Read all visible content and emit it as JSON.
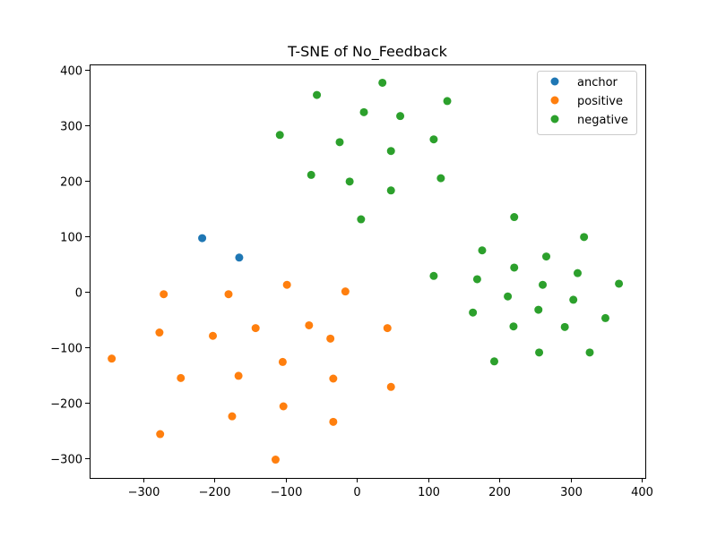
{
  "chart_data": {
    "type": "scatter",
    "title": "T-SNE of No_Feedback",
    "xlabel": "",
    "ylabel": "",
    "xlim": [
      -375,
      405
    ],
    "ylim": [
      -335,
      410
    ],
    "xticks": [
      -300,
      -200,
      -100,
      0,
      100,
      200,
      300,
      400
    ],
    "yticks": [
      -300,
      -200,
      -100,
      0,
      100,
      200,
      300,
      400
    ],
    "xtick_labels": [
      "−300",
      "−200",
      "−100",
      "0",
      "100",
      "200",
      "300",
      "400"
    ],
    "ytick_labels": [
      "−300",
      "−200",
      "−100",
      "0",
      "100",
      "200",
      "300",
      "400"
    ],
    "grid": false,
    "legend_position": "top-right",
    "series": [
      {
        "name": "anchor",
        "color": "#1f77b4",
        "points": [
          [
            -217,
            97
          ],
          [
            -165,
            62
          ]
        ]
      },
      {
        "name": "positive",
        "color": "#ff7f0e",
        "points": [
          [
            -271,
            -4
          ],
          [
            -180,
            -4
          ],
          [
            -98,
            13
          ],
          [
            -16,
            1
          ],
          [
            -277,
            -73
          ],
          [
            -202,
            -79
          ],
          [
            -142,
            -65
          ],
          [
            -67,
            -60
          ],
          [
            -37,
            -84
          ],
          [
            43,
            -65
          ],
          [
            -344,
            -120
          ],
          [
            -247,
            -155
          ],
          [
            -166,
            -151
          ],
          [
            -104,
            -126
          ],
          [
            -33,
            -156
          ],
          [
            48,
            -171
          ],
          [
            -175,
            -224
          ],
          [
            -103,
            -206
          ],
          [
            -33,
            -234
          ],
          [
            -276,
            -256
          ],
          [
            -114,
            -302
          ]
        ]
      },
      {
        "name": "negative",
        "color": "#2ca02c",
        "points": [
          [
            -56,
            355
          ],
          [
            36,
            377
          ],
          [
            10,
            324
          ],
          [
            61,
            317
          ],
          [
            127,
            344
          ],
          [
            -108,
            283
          ],
          [
            -24,
            270
          ],
          [
            48,
            254
          ],
          [
            108,
            275
          ],
          [
            -64,
            211
          ],
          [
            -10,
            199
          ],
          [
            48,
            183
          ],
          [
            118,
            205
          ],
          [
            6,
            131
          ],
          [
            221,
            135
          ],
          [
            176,
            75
          ],
          [
            319,
            99
          ],
          [
            266,
            64
          ],
          [
            221,
            44
          ],
          [
            310,
            34
          ],
          [
            108,
            29
          ],
          [
            169,
            23
          ],
          [
            261,
            13
          ],
          [
            368,
            15
          ],
          [
            212,
            -8
          ],
          [
            304,
            -14
          ],
          [
            163,
            -37
          ],
          [
            255,
            -32
          ],
          [
            349,
            -47
          ],
          [
            220,
            -62
          ],
          [
            292,
            -63
          ],
          [
            193,
            -125
          ],
          [
            256,
            -109
          ],
          [
            327,
            -109
          ]
        ]
      }
    ]
  }
}
